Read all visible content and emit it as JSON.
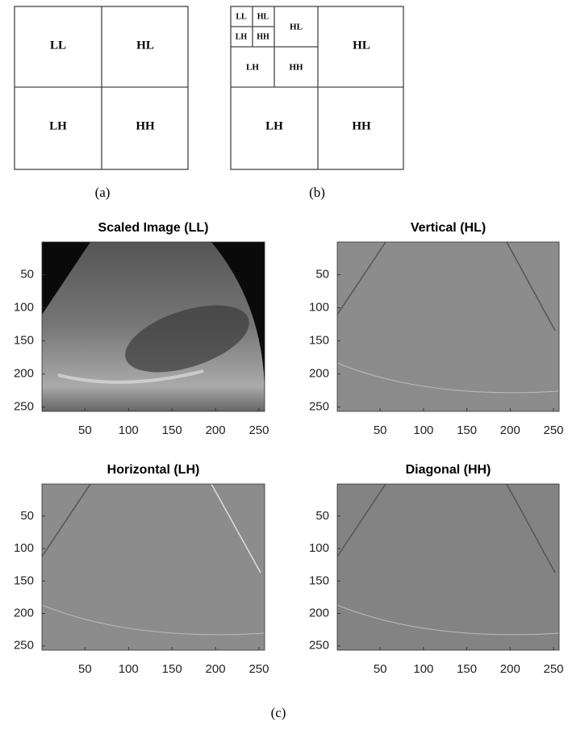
{
  "diagram_a": {
    "labels": [
      "LL",
      "HL",
      "LH",
      "HH"
    ],
    "caption": "(a)"
  },
  "diagram_b": {
    "level2": [
      "LL",
      "HL",
      "LH",
      "HH"
    ],
    "level1": [
      "HL",
      "LH",
      "HH"
    ],
    "outer": [
      "HL",
      "LH",
      "HH"
    ],
    "caption": "(b)"
  },
  "panels": [
    {
      "title": "Scaled Image (LL)",
      "xticks": [
        50,
        100,
        150,
        200,
        250
      ],
      "yticks": [
        50,
        100,
        150,
        200,
        250
      ],
      "xlim": [
        0.5,
        256.5
      ],
      "ylim": [
        0.5,
        256.5
      ]
    },
    {
      "title": "Vertical (HL)",
      "xticks": [
        50,
        100,
        150,
        200,
        250
      ],
      "yticks": [
        50,
        100,
        150,
        200,
        250
      ],
      "xlim": [
        0.5,
        256.5
      ],
      "ylim": [
        0.5,
        256.5
      ]
    },
    {
      "title": "Horizontal (LH)",
      "xticks": [
        50,
        100,
        150,
        200,
        250
      ],
      "yticks": [
        50,
        100,
        150,
        200,
        250
      ],
      "xlim": [
        0.5,
        256.5
      ],
      "ylim": [
        0.5,
        256.5
      ]
    },
    {
      "title": "Diagonal (HH)",
      "xticks": [
        50,
        100,
        150,
        200,
        250
      ],
      "yticks": [
        50,
        100,
        150,
        200,
        250
      ],
      "xlim": [
        0.5,
        256.5
      ],
      "ylim": [
        0.5,
        256.5
      ]
    }
  ],
  "caption_c": "(c)"
}
